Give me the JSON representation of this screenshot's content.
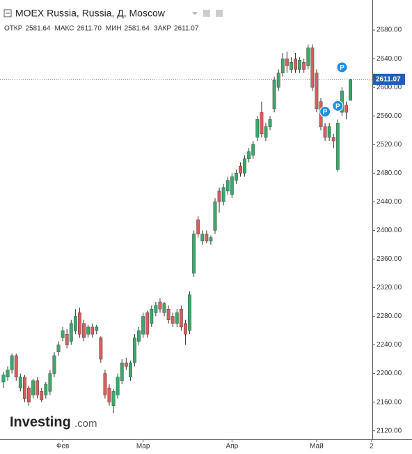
{
  "chart_data": {
    "type": "candlestick",
    "title": "MOEX Russia, Russia, Д, Moscow",
    "ohlc_header": [
      {
        "label": "ОТКР",
        "value": "2581.64"
      },
      {
        "label": "МАКС",
        "value": "2611.70"
      },
      {
        "label": "МИН",
        "value": "2581.64"
      },
      {
        "label": "ЗАКР",
        "value": "2611.07"
      }
    ],
    "categories": [
      null,
      null,
      null,
      null,
      null,
      null,
      null,
      null,
      null,
      null,
      null,
      null,
      null,
      null,
      "Фев",
      null,
      null,
      null,
      null,
      null,
      null,
      null,
      null,
      null,
      null,
      null,
      null,
      null,
      null,
      null,
      null,
      null,
      null,
      "Мар",
      null,
      null,
      null,
      null,
      null,
      null,
      null,
      null,
      null,
      null,
      null,
      null,
      null,
      null,
      null,
      null,
      null,
      null,
      null,
      null,
      "Апр",
      null,
      null,
      null,
      null,
      null,
      null,
      null,
      null,
      null,
      null,
      null,
      null,
      null,
      null,
      null,
      null,
      null,
      null,
      null,
      "Май",
      null,
      null,
      null,
      null,
      null,
      null,
      null,
      null,
      null,
      null,
      null,
      null,
      "2"
    ],
    "open": [
      2188,
      2195,
      2205,
      2225,
      2180,
      2195,
      2180,
      2170,
      2190,
      2175,
      2170,
      2175,
      2200,
      2230,
      2250,
      2255,
      2245,
      2260,
      2285,
      2270,
      2255,
      2265,
      2260,
      2250,
      2200,
      2180,
      2155,
      2170,
      2190,
      2215,
      2195,
      2215,
      2245,
      2255,
      2285,
      2270,
      2285,
      2300,
      2285,
      2290,
      2280,
      2270,
      2290,
      2270,
      2260,
      2340,
      2415,
      2385,
      2395,
      2385,
      2400,
      2455,
      2440,
      2455,
      2450,
      2470,
      2490,
      2480,
      2500,
      2505,
      2530,
      2565,
      2530,
      2545,
      2570,
      2600,
      2620,
      2640,
      2625,
      2640,
      2625,
      2635,
      2630,
      2655,
      2620,
      2580,
      2545,
      2530,
      2530,
      2485,
      2565,
      2575,
      2581.64,
      null,
      null,
      null,
      null,
      null
    ],
    "high": [
      2202,
      2210,
      2228,
      2228,
      2200,
      2198,
      2183,
      2193,
      2195,
      2180,
      2188,
      2205,
      2230,
      2245,
      2265,
      2262,
      2275,
      2290,
      2292,
      2275,
      2268,
      2270,
      2268,
      2252,
      2205,
      2185,
      2178,
      2200,
      2220,
      2222,
      2218,
      2255,
      2265,
      2285,
      2288,
      2295,
      2300,
      2305,
      2300,
      2295,
      2285,
      2290,
      2295,
      2275,
      2315,
      2400,
      2420,
      2400,
      2400,
      2393,
      2445,
      2460,
      2465,
      2475,
      2480,
      2485,
      2495,
      2505,
      2515,
      2525,
      2560,
      2580,
      2550,
      2560,
      2615,
      2625,
      2648,
      2650,
      2642,
      2648,
      2642,
      2640,
      2660,
      2660,
      2625,
      2585,
      2550,
      2550,
      2535,
      2555,
      2600,
      2580,
      2611.7,
      null,
      null,
      null,
      null,
      null
    ],
    "low": [
      2180,
      2190,
      2200,
      2190,
      2175,
      2160,
      2155,
      2165,
      2165,
      2160,
      2165,
      2170,
      2195,
      2225,
      2245,
      2235,
      2240,
      2255,
      2250,
      2245,
      2250,
      2250,
      2255,
      2215,
      2165,
      2155,
      2145,
      2165,
      2185,
      2205,
      2190,
      2210,
      2240,
      2250,
      2250,
      2265,
      2280,
      2285,
      2280,
      2270,
      2265,
      2265,
      2260,
      2240,
      2255,
      2335,
      2390,
      2380,
      2382,
      2380,
      2395,
      2425,
      2435,
      2450,
      2445,
      2465,
      2475,
      2475,
      2495,
      2500,
      2525,
      2530,
      2525,
      2540,
      2565,
      2595,
      2615,
      2620,
      2620,
      2620,
      2620,
      2620,
      2625,
      2595,
      2565,
      2540,
      2525,
      2525,
      2515,
      2482,
      2560,
      2555,
      2581.64,
      null,
      null,
      null,
      null,
      null
    ],
    "close": [
      2198,
      2205,
      2225,
      2195,
      2195,
      2165,
      2160,
      2190,
      2170,
      2163,
      2185,
      2200,
      2225,
      2240,
      2260,
      2240,
      2270,
      2280,
      2255,
      2250,
      2265,
      2255,
      2265,
      2220,
      2170,
      2160,
      2175,
      2195,
      2215,
      2210,
      2215,
      2250,
      2260,
      2280,
      2255,
      2290,
      2295,
      2290,
      2298,
      2275,
      2270,
      2285,
      2265,
      2255,
      2310,
      2395,
      2395,
      2395,
      2385,
      2390,
      2440,
      2440,
      2460,
      2470,
      2475,
      2480,
      2480,
      2500,
      2510,
      2520,
      2555,
      2535,
      2545,
      2555,
      2610,
      2620,
      2640,
      2630,
      2635,
      2625,
      2638,
      2625,
      2655,
      2600,
      2570,
      2545,
      2530,
      2545,
      2525,
      2550,
      2595,
      2565,
      2611.07,
      null,
      null,
      null,
      null,
      null
    ],
    "up_color": "#3aa86b",
    "down_color": "#d95c5c",
    "last_price": 2611.07,
    "markers": [
      {
        "index": 76,
        "price": 2566,
        "label": "P"
      },
      {
        "index": 79,
        "price": 2574,
        "label": "P"
      },
      {
        "index": 80,
        "price": 2628,
        "label": "P"
      }
    ],
    "ylim": [
      2108,
      2722
    ],
    "yticks": [
      {
        "value": 2120,
        "label": "2120.00"
      },
      {
        "value": 2160,
        "label": "2160.00"
      },
      {
        "value": 2200,
        "label": "2200.00"
      },
      {
        "value": 2240,
        "label": "2240.00"
      },
      {
        "value": 2280,
        "label": "2280.00"
      },
      {
        "value": 2320,
        "label": "2320.00"
      },
      {
        "value": 2360,
        "label": "2360.00"
      },
      {
        "value": 2400,
        "label": "2400.00"
      },
      {
        "value": 2440,
        "label": "2440.00"
      },
      {
        "value": 2480,
        "label": "2480.00"
      },
      {
        "value": 2520,
        "label": "2520.00"
      },
      {
        "value": 2560,
        "label": "2560.00"
      },
      {
        "value": 2600,
        "label": "2600.00"
      },
      {
        "value": 2640,
        "label": "2640.00"
      },
      {
        "value": 2680,
        "label": "2680.00"
      }
    ],
    "grid": false,
    "watermark": {
      "brand": "Investing",
      "suffix": ".com"
    }
  }
}
